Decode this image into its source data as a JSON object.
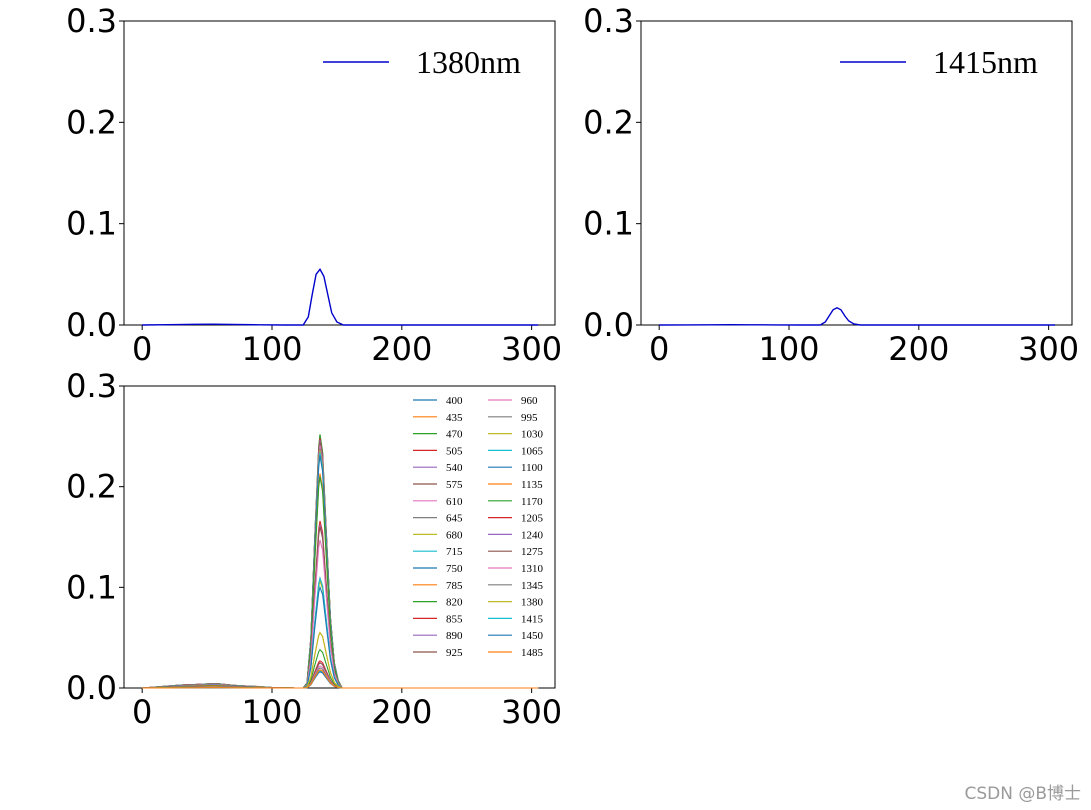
{
  "colors": {
    "single_line": "#0000cc",
    "palette": [
      "#1f77b4",
      "#ff7f0e",
      "#2ca02c",
      "#d62728",
      "#9467bd",
      "#8c564b",
      "#e377c2",
      "#7f7f7f",
      "#bcbd22",
      "#17becf"
    ]
  },
  "chart_data": [
    {
      "type": "line",
      "xlim": [
        0,
        305
      ],
      "ylim": [
        0,
        0.3
      ],
      "xticks": [
        0,
        100,
        200,
        300
      ],
      "yticks": [
        0.0,
        0.1,
        0.2,
        0.3
      ],
      "legend": [
        "1380nm"
      ],
      "legend_position": "top-right",
      "series": [
        {
          "name": "1380nm",
          "x": [
            0,
            20,
            40,
            55,
            70,
            90,
            110,
            124,
            128,
            131,
            134,
            137,
            140,
            143,
            146,
            150,
            155,
            160,
            200,
            250,
            305
          ],
          "y": [
            0.0,
            0.0003,
            0.0007,
            0.0008,
            0.0006,
            0.0002,
            0.0,
            0.0,
            0.008,
            0.03,
            0.05,
            0.055,
            0.048,
            0.03,
            0.012,
            0.003,
            0.0,
            0.0,
            0.0,
            0.0,
            0.0
          ]
        }
      ]
    },
    {
      "type": "line",
      "xlim": [
        0,
        305
      ],
      "ylim": [
        0,
        0.3
      ],
      "xticks": [
        0,
        100,
        200,
        300
      ],
      "yticks": [
        0.0,
        0.1,
        0.2,
        0.3
      ],
      "legend": [
        "1415nm"
      ],
      "legend_position": "top-right",
      "series": [
        {
          "name": "1415nm",
          "x": [
            0,
            20,
            40,
            55,
            70,
            90,
            110,
            124,
            128,
            131,
            134,
            137,
            140,
            143,
            146,
            150,
            155,
            160,
            200,
            250,
            305
          ],
          "y": [
            0.0,
            0.0001,
            0.0002,
            0.0003,
            0.0002,
            0.0001,
            0.0,
            0.0,
            0.003,
            0.009,
            0.015,
            0.017,
            0.015,
            0.009,
            0.004,
            0.001,
            0.0,
            0.0,
            0.0,
            0.0,
            0.0
          ]
        }
      ]
    },
    {
      "type": "line",
      "xlim": [
        0,
        305
      ],
      "ylim": [
        0,
        0.3
      ],
      "xticks": [
        0,
        100,
        200,
        300
      ],
      "yticks": [
        0.0,
        0.1,
        0.2,
        0.3
      ],
      "legend_position": "top-right",
      "legend_columns": 2,
      "x": [
        0,
        10,
        20,
        30,
        40,
        50,
        55,
        60,
        70,
        80,
        90,
        100,
        110,
        118,
        124,
        127,
        130,
        133,
        136,
        137,
        139,
        142,
        145,
        148,
        151,
        154,
        160,
        200,
        250,
        305
      ],
      "shape": [
        0,
        0.2,
        0.45,
        0.65,
        0.75,
        0.9,
        1.0,
        0.9,
        0.6,
        0.45,
        0.3,
        0.12,
        0.03,
        0,
        0,
        0,
        0,
        0,
        0,
        0,
        0,
        0,
        0,
        0,
        0,
        0,
        0,
        0,
        0,
        0
      ],
      "peak_shape": [
        0,
        0,
        0,
        0,
        0,
        0,
        0,
        0,
        0,
        0,
        0,
        0,
        0,
        0,
        0,
        0.02,
        0.2,
        0.6,
        0.95,
        1.0,
        0.93,
        0.6,
        0.28,
        0.1,
        0.03,
        0,
        0,
        0,
        0,
        0
      ],
      "series": [
        {
          "name": "400",
          "peak": 0.251,
          "base": 0.0045
        },
        {
          "name": "435",
          "peak": 0.249,
          "base": 0.0045
        },
        {
          "name": "470",
          "peak": 0.252,
          "base": 0.0045
        },
        {
          "name": "505",
          "peak": 0.248,
          "base": 0.0045
        },
        {
          "name": "540",
          "peak": 0.246,
          "base": 0.0044
        },
        {
          "name": "575",
          "peak": 0.244,
          "base": 0.0044
        },
        {
          "name": "610",
          "peak": 0.241,
          "base": 0.0043
        },
        {
          "name": "645",
          "peak": 0.238,
          "base": 0.0043
        },
        {
          "name": "680",
          "peak": 0.236,
          "base": 0.0042
        },
        {
          "name": "715",
          "peak": 0.234,
          "base": 0.0042
        },
        {
          "name": "750",
          "peak": 0.231,
          "base": 0.0041
        },
        {
          "name": "785",
          "peak": 0.213,
          "base": 0.004
        },
        {
          "name": "820",
          "peak": 0.21,
          "base": 0.004
        },
        {
          "name": "855",
          "peak": 0.166,
          "base": 0.0038
        },
        {
          "name": "890",
          "peak": 0.162,
          "base": 0.0037
        },
        {
          "name": "925",
          "peak": 0.16,
          "base": 0.0036
        },
        {
          "name": "960",
          "peak": 0.147,
          "base": 0.0035
        },
        {
          "name": "995",
          "peak": 0.109,
          "base": 0.003
        },
        {
          "name": "1030",
          "peak": 0.106,
          "base": 0.003
        },
        {
          "name": "1065",
          "peak": 0.109,
          "base": 0.003
        },
        {
          "name": "1100",
          "peak": 0.1,
          "base": 0.0029
        },
        {
          "name": "1135",
          "peak": 0.055,
          "base": 0.0025
        },
        {
          "name": "1170",
          "peak": 0.038,
          "base": 0.002
        },
        {
          "name": "1205",
          "peak": 0.027,
          "base": 0.0016
        },
        {
          "name": "1240",
          "peak": 0.025,
          "base": 0.0015
        },
        {
          "name": "1275",
          "peak": 0.025,
          "base": 0.0014
        },
        {
          "name": "1310",
          "peak": 0.022,
          "base": 0.0012
        },
        {
          "name": "1345",
          "peak": 0.02,
          "base": 0.001
        },
        {
          "name": "1380",
          "peak": 0.055,
          "base": 0.0008
        },
        {
          "name": "1415",
          "peak": 0.017,
          "base": 0.0003
        },
        {
          "name": "1450",
          "peak": 0.016,
          "base": 0.0002
        },
        {
          "name": "1485",
          "peak": 0.018,
          "base": 0.0003
        }
      ]
    }
  ],
  "watermark": "CSDN @B博士"
}
